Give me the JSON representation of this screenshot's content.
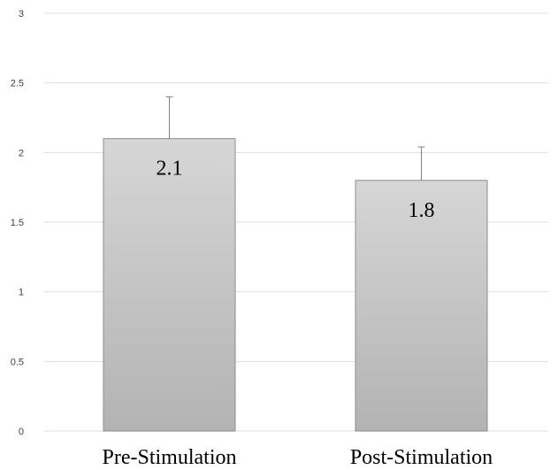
{
  "chart_data": {
    "type": "bar",
    "categories": [
      "Pre-Stimulation",
      "Post-Stimulation"
    ],
    "values": [
      2.1,
      1.8
    ],
    "error_upper": [
      2.4,
      2.04
    ],
    "data_labels": [
      "2.1",
      "1.8"
    ],
    "ylim": [
      0,
      3
    ],
    "yticks": [
      "0",
      "0.5",
      "1",
      "1.5",
      "2",
      "2.5",
      "3"
    ],
    "ytick_values": [
      0,
      0.5,
      1,
      1.5,
      2,
      2.5,
      3
    ],
    "grid": true,
    "legend": "none",
    "colors": {
      "bar_top": "#d6d6d6",
      "bar_bottom": "#b3b3b3",
      "bar_stroke": "#8c8c8c",
      "grid": "#dedede",
      "error_bar": "#7f7f7f",
      "text": "#000000",
      "tick_text": "#404040"
    }
  }
}
